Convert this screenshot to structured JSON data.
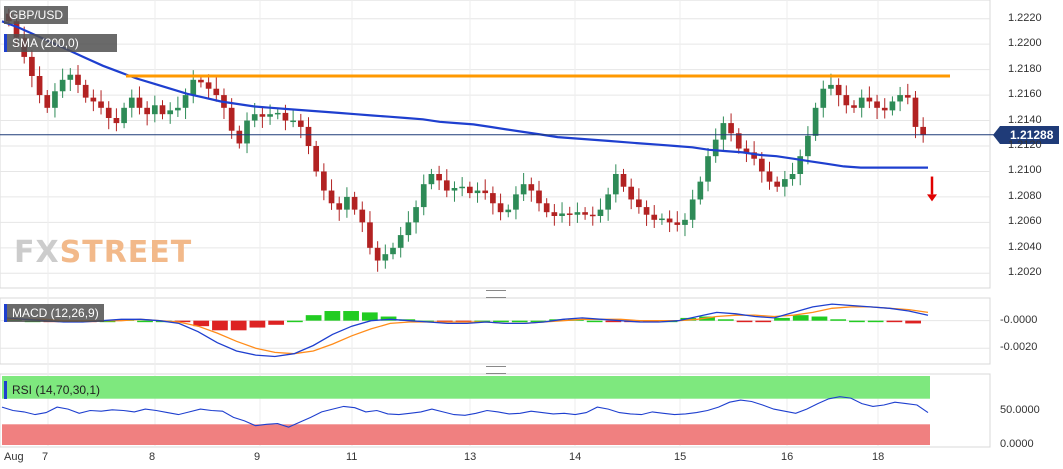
{
  "chart_data": [
    {
      "type": "line",
      "panel": "price",
      "title": "GBP/USD",
      "indicator_label": "SMA (200,0)",
      "last_price": "1.21288",
      "ylim": [
        1.201,
        1.223
      ],
      "y_ticks": [
        "1.2220",
        "1.2200",
        "1.2180",
        "1.2160",
        "1.2140",
        "1.2120",
        "1.2100",
        "1.2080",
        "1.2060",
        "1.2040",
        "1.2020"
      ],
      "x_ticks": [
        "Aug",
        "7",
        "8",
        "9",
        "11",
        "13",
        "14",
        "15",
        "16",
        "18"
      ],
      "resistance_level": 1.2175,
      "close_series": [
        1.2218,
        1.2205,
        1.219,
        1.2175,
        1.216,
        1.215,
        1.2163,
        1.2172,
        1.2176,
        1.2168,
        1.2158,
        1.2155,
        1.215,
        1.2142,
        1.2138,
        1.215,
        1.2158,
        1.215,
        1.2145,
        1.2152,
        1.2145,
        1.2148,
        1.215,
        1.216,
        1.2172,
        1.217,
        1.2165,
        1.216,
        1.215,
        1.2132,
        1.2122,
        1.214,
        1.2145,
        1.2143,
        1.2145,
        1.2146,
        1.214,
        1.214,
        1.2135,
        1.212,
        1.21,
        1.2085,
        1.2075,
        1.207,
        1.208,
        1.207,
        1.206,
        1.204,
        1.203,
        1.2035,
        1.204,
        1.205,
        1.206,
        1.2072,
        1.209,
        1.2098,
        1.2093,
        1.2085,
        1.2087,
        1.2088,
        1.2083,
        1.2085,
        1.2083,
        1.2075,
        1.2068,
        1.207,
        1.2082,
        1.209,
        1.2085,
        1.2075,
        1.2068,
        1.2065,
        1.2067,
        1.2066,
        1.2068,
        1.2066,
        1.2065,
        1.207,
        1.2082,
        1.2098,
        1.2088,
        1.2078,
        1.2072,
        1.2066,
        1.2062,
        1.2063,
        1.206,
        1.2058,
        1.2062,
        1.2078,
        1.2092,
        1.2112,
        1.2125,
        1.2138,
        1.213,
        1.2118,
        1.2115,
        1.211,
        1.21,
        1.2092,
        1.2088,
        1.2094,
        1.2098,
        1.2112,
        1.2128,
        1.215,
        1.2165,
        1.2168,
        1.216,
        1.2152,
        1.215,
        1.2158,
        1.2155,
        1.215,
        1.2148,
        1.2155,
        1.216,
        1.2158,
        1.2135,
        1.2129
      ],
      "sma_series": [
        1.2218,
        1.2213,
        1.2207,
        1.2201,
        1.2195,
        1.2189,
        1.2183,
        1.2178,
        1.2173,
        1.2169,
        1.2165,
        1.2161,
        1.2158,
        1.2155,
        1.2153,
        1.2151,
        1.215,
        1.2149,
        1.2148,
        1.2147,
        1.2146,
        1.2145,
        1.2144,
        1.2143,
        1.2142,
        1.2141,
        1.2139,
        1.2138,
        1.2137,
        1.2135,
        1.2133,
        1.2131,
        1.2129,
        1.2127,
        1.2126,
        1.2125,
        1.2124,
        1.2123,
        1.2122,
        1.2121,
        1.212,
        1.2119,
        1.2117,
        1.2116,
        1.2115,
        1.2113,
        1.2112,
        1.211,
        1.2108,
        1.2106,
        1.2104,
        1.2103,
        1.2103,
        1.2103,
        1.2103,
        1.2103
      ],
      "series_colors": {
        "up": "#2e8b57",
        "down": "#b22222",
        "sma": "#1e3fcf",
        "resistance": "#ff9900",
        "arrow": "#e00000"
      }
    },
    {
      "type": "line",
      "panel": "macd",
      "indicator_label": "MACD (12,26,9)",
      "ylim": [
        -0.003,
        0.0015
      ],
      "y_ticks": [
        "-0.0000",
        "-0.0020"
      ],
      "macd_line": [
        0.0002,
        0.0001,
        0.0,
        -0.0001,
        -0.0001,
        0.0,
        0.0001,
        0.0001,
        0.0,
        -0.0002,
        -0.0008,
        -0.0016,
        -0.0022,
        -0.0025,
        -0.0026,
        -0.0024,
        -0.0018,
        -0.001,
        -0.0004,
        0.0,
        0.0001,
        0.0,
        -0.0001,
        -0.0002,
        -0.0002,
        -0.0001,
        -0.0002,
        -0.0002,
        -0.0001,
        0.0001,
        0.0002,
        0.0001,
        0.0,
        -0.0001,
        -0.0001,
        0.0,
        0.0003,
        0.0006,
        0.0005,
        0.0003,
        0.0002,
        0.0006,
        0.001,
        0.0012,
        0.0011,
        0.001,
        0.0009,
        0.0007,
        0.0004
      ],
      "signal_line": [
        0.0001,
        0.0001,
        0.0001,
        0.0,
        0.0,
        0.0,
        0.0,
        0.0001,
        0.0,
        -0.0001,
        -0.0004,
        -0.0009,
        -0.0015,
        -0.002,
        -0.0023,
        -0.0024,
        -0.0022,
        -0.0017,
        -0.0011,
        -0.0006,
        -0.0002,
        -0.0001,
        -0.0001,
        -0.0001,
        -0.0001,
        -0.0001,
        -0.0002,
        -0.0002,
        -0.0001,
        0.0,
        0.0001,
        0.0001,
        0.0001,
        0.0,
        0.0,
        0.0,
        0.0001,
        0.0003,
        0.0004,
        0.0004,
        0.0003,
        0.0004,
        0.0006,
        0.0009,
        0.001,
        0.001,
        0.0009,
        0.0008,
        0.0006
      ],
      "histogram": [
        0.0001,
        0.0,
        -0.0001,
        -0.0001,
        -0.0001,
        0.0,
        0.0001,
        0.0,
        0.0,
        -0.0001,
        -0.0004,
        -0.0007,
        -0.0007,
        -0.0005,
        -0.0003,
        0.0,
        0.0004,
        0.0007,
        0.0007,
        0.0006,
        0.0003,
        0.0001,
        0.0,
        -0.0001,
        -0.0001,
        0.0,
        0.0,
        0.0,
        0.0,
        0.0001,
        0.0001,
        0.0,
        -0.0001,
        -0.0001,
        -0.0001,
        0.0,
        0.0002,
        0.0003,
        0.0001,
        -0.0001,
        -0.0001,
        0.0002,
        0.0004,
        0.0003,
        0.0001,
        0.0,
        0.0,
        -0.0001,
        -0.0002
      ],
      "series_colors": {
        "macd": "#1e3fcf",
        "signal": "#ff8c1a",
        "hist_up": "#22cc22",
        "hist_down": "#dd2222"
      }
    },
    {
      "type": "line",
      "panel": "rsi",
      "indicator_label": "RSI (14,70,30,1)",
      "ylim": [
        0,
        100
      ],
      "y_ticks": [
        "50.0000",
        "0.0000"
      ],
      "overbought": 70,
      "oversold": 30,
      "rsi_line": [
        55,
        50,
        48,
        44,
        47,
        55,
        52,
        46,
        50,
        49,
        51,
        50,
        48,
        52,
        50,
        47,
        44,
        48,
        52,
        50,
        49,
        40,
        35,
        28,
        30,
        31,
        26,
        33,
        40,
        48,
        52,
        56,
        54,
        48,
        50,
        45,
        44,
        46,
        48,
        52,
        48,
        44,
        43,
        46,
        50,
        48,
        45,
        46,
        49,
        47,
        45,
        46,
        44,
        47,
        55,
        52,
        47,
        45,
        44,
        48,
        46,
        44,
        45,
        47,
        50,
        55,
        62,
        65,
        63,
        58,
        52,
        49,
        46,
        52,
        60,
        67,
        70,
        68,
        60,
        56,
        58,
        62,
        60,
        58,
        47
      ]
    }
  ]
}
